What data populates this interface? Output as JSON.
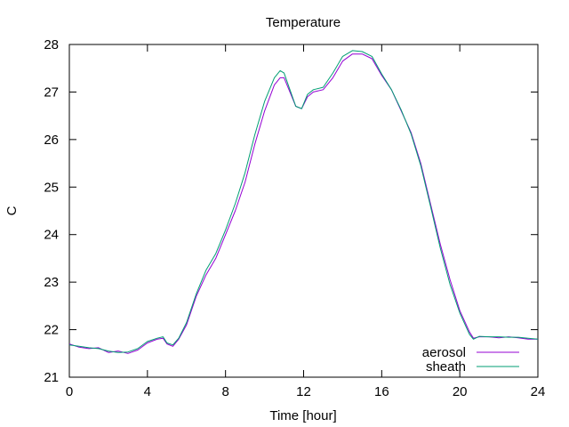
{
  "chart_data": {
    "type": "line",
    "title": "Temperature",
    "xlabel": "Time [hour]",
    "ylabel": "C",
    "xlim": [
      0,
      24
    ],
    "ylim": [
      21,
      28
    ],
    "xticks": [
      0,
      4,
      8,
      12,
      16,
      20,
      24
    ],
    "yticks": [
      21,
      22,
      23,
      24,
      25,
      26,
      27,
      28
    ],
    "grid": false,
    "legend_position": "bottom-right",
    "series": [
      {
        "name": "aerosol",
        "color": "#9400d3",
        "x": [
          0,
          0.5,
          1,
          1.5,
          2,
          2.5,
          3,
          3.5,
          4,
          4.5,
          4.8,
          5,
          5.3,
          5.6,
          6,
          6.5,
          7,
          7.5,
          8,
          8.5,
          9,
          9.5,
          10,
          10.5,
          10.8,
          11,
          11.3,
          11.6,
          11.9,
          12.2,
          12.5,
          13,
          13.5,
          14,
          14.5,
          15,
          15.5,
          16,
          16.5,
          17,
          17.5,
          18,
          18.5,
          19,
          19.5,
          20,
          20.5,
          20.7,
          21,
          21.5,
          22,
          22.5,
          23,
          23.5,
          24
        ],
        "values": [
          21.7,
          21.63,
          21.6,
          21.62,
          21.52,
          21.55,
          21.5,
          21.57,
          21.72,
          21.8,
          21.82,
          21.7,
          21.65,
          21.8,
          22.1,
          22.7,
          23.15,
          23.5,
          24.0,
          24.5,
          25.1,
          25.9,
          26.6,
          27.15,
          27.3,
          27.3,
          27.0,
          26.7,
          26.65,
          26.9,
          27.0,
          27.05,
          27.3,
          27.65,
          27.8,
          27.8,
          27.7,
          27.35,
          27.05,
          26.6,
          26.15,
          25.5,
          24.65,
          23.8,
          23.05,
          22.4,
          21.95,
          21.82,
          21.85,
          21.85,
          21.83,
          21.85,
          21.83,
          21.8,
          21.8
        ]
      },
      {
        "name": "sheath",
        "color": "#009e73",
        "x": [
          0,
          0.5,
          1,
          1.5,
          2,
          2.5,
          3,
          3.5,
          4,
          4.5,
          4.8,
          5,
          5.3,
          5.6,
          6,
          6.5,
          7,
          7.5,
          8,
          8.5,
          9,
          9.5,
          10,
          10.5,
          10.8,
          11,
          11.3,
          11.6,
          11.9,
          12.2,
          12.5,
          13,
          13.5,
          14,
          14.5,
          15,
          15.5,
          16,
          16.5,
          17,
          17.5,
          18,
          18.5,
          19,
          19.5,
          20,
          20.5,
          20.7,
          21,
          21.5,
          22,
          22.5,
          23,
          23.5,
          24
        ],
        "values": [
          21.68,
          21.65,
          21.62,
          21.6,
          21.55,
          21.52,
          21.53,
          21.6,
          21.75,
          21.82,
          21.85,
          21.72,
          21.68,
          21.82,
          22.15,
          22.75,
          23.25,
          23.6,
          24.1,
          24.65,
          25.3,
          26.1,
          26.8,
          27.3,
          27.45,
          27.4,
          27.05,
          26.7,
          26.65,
          26.95,
          27.05,
          27.1,
          27.4,
          27.75,
          27.87,
          27.85,
          27.75,
          27.38,
          27.05,
          26.62,
          26.12,
          25.45,
          24.6,
          23.72,
          22.95,
          22.35,
          21.9,
          21.8,
          21.86,
          21.85,
          21.85,
          21.84,
          21.84,
          21.82,
          21.8
        ]
      }
    ]
  }
}
